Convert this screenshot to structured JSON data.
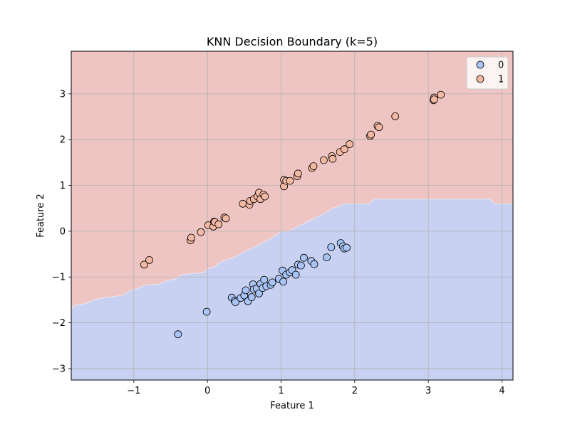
{
  "chart_data": {
    "type": "scatter",
    "title": "KNN Decision Boundary (k=5)",
    "xlabel": "Feature 1",
    "ylabel": "Feature 2",
    "xlim": [
      -1.85,
      4.15
    ],
    "ylim": [
      -3.25,
      3.93
    ],
    "xticks": [
      -1,
      0,
      1,
      2,
      3,
      4
    ],
    "yticks": [
      -3,
      -2,
      -1,
      0,
      1,
      2,
      3
    ],
    "xtick_labels": [
      "−1",
      "0",
      "1",
      "2",
      "3",
      "4"
    ],
    "ytick_labels": [
      "−3",
      "−2",
      "−1",
      "0",
      "1",
      "2",
      "3"
    ],
    "grid": true,
    "legend_position": "upper right",
    "region_colors": {
      "0": "#c8d1f2",
      "1": "#eec5c3"
    },
    "boundary": [
      [
        -1.85,
        -1.7
      ],
      [
        -1.8,
        -1.62
      ],
      [
        -1.65,
        -1.58
      ],
      [
        -1.55,
        -1.5
      ],
      [
        -1.4,
        -1.45
      ],
      [
        -1.15,
        -1.4
      ],
      [
        -1.05,
        -1.3
      ],
      [
        -0.95,
        -1.25
      ],
      [
        -0.85,
        -1.18
      ],
      [
        -0.65,
        -1.15
      ],
      [
        -0.55,
        -1.08
      ],
      [
        -0.45,
        -1.05
      ],
      [
        -0.35,
        -0.95
      ],
      [
        -0.05,
        -0.9
      ],
      [
        0.0,
        -0.82
      ],
      [
        0.1,
        -0.78
      ],
      [
        0.15,
        -0.7
      ],
      [
        0.25,
        -0.63
      ],
      [
        0.35,
        -0.58
      ],
      [
        0.5,
        -0.45
      ],
      [
        0.7,
        -0.3
      ],
      [
        0.9,
        -0.12
      ],
      [
        1.0,
        0.0
      ],
      [
        1.1,
        0.0
      ],
      [
        1.35,
        0.2
      ],
      [
        1.6,
        0.4
      ],
      [
        1.7,
        0.5
      ],
      [
        1.8,
        0.55
      ],
      [
        1.85,
        0.6
      ],
      [
        2.2,
        0.6
      ],
      [
        2.25,
        0.7
      ],
      [
        3.85,
        0.7
      ],
      [
        3.9,
        0.6
      ],
      [
        4.15,
        0.6
      ]
    ],
    "series": [
      {
        "name": "0",
        "color": "#a8c5f6",
        "points": [
          [
            -0.4,
            -2.25
          ],
          [
            -0.01,
            -1.76
          ],
          [
            0.33,
            -1.45
          ],
          [
            0.37,
            -1.52
          ],
          [
            0.38,
            -1.55
          ],
          [
            0.45,
            -1.46
          ],
          [
            0.5,
            -1.4
          ],
          [
            0.52,
            -1.29
          ],
          [
            0.55,
            -1.53
          ],
          [
            0.6,
            -1.44
          ],
          [
            0.62,
            -1.16
          ],
          [
            0.63,
            -1.27
          ],
          [
            0.67,
            -1.25
          ],
          [
            0.7,
            -1.36
          ],
          [
            0.72,
            -1.15
          ],
          [
            0.75,
            -1.24
          ],
          [
            0.77,
            -1.06
          ],
          [
            0.8,
            -1.2
          ],
          [
            0.86,
            -1.17
          ],
          [
            0.88,
            -1.12
          ],
          [
            0.97,
            -1.04
          ],
          [
            1.02,
            -0.86
          ],
          [
            1.03,
            -1.1
          ],
          [
            1.07,
            -0.95
          ],
          [
            1.12,
            -0.9
          ],
          [
            1.15,
            -0.85
          ],
          [
            1.2,
            -0.95
          ],
          [
            1.23,
            -0.73
          ],
          [
            1.27,
            -0.75
          ],
          [
            1.31,
            -0.58
          ],
          [
            1.41,
            -0.65
          ],
          [
            1.45,
            -0.72
          ],
          [
            1.62,
            -0.57
          ],
          [
            1.68,
            -0.35
          ],
          [
            1.81,
            -0.26
          ],
          [
            1.84,
            -0.33
          ],
          [
            1.86,
            -0.38
          ],
          [
            1.89,
            -0.36
          ]
        ]
      },
      {
        "name": "1",
        "color": "#f2b8a2",
        "points": [
          [
            -0.86,
            -0.73
          ],
          [
            -0.79,
            -0.63
          ],
          [
            -0.23,
            -0.2
          ],
          [
            -0.22,
            -0.14
          ],
          [
            -0.09,
            -0.02
          ],
          [
            0.01,
            0.13
          ],
          [
            0.08,
            0.1
          ],
          [
            0.09,
            0.21
          ],
          [
            0.1,
            0.2
          ],
          [
            0.15,
            0.15
          ],
          [
            0.23,
            0.3
          ],
          [
            0.25,
            0.28
          ],
          [
            0.48,
            0.6
          ],
          [
            0.57,
            0.58
          ],
          [
            0.58,
            0.66
          ],
          [
            0.63,
            0.7
          ],
          [
            0.68,
            0.76
          ],
          [
            0.7,
            0.84
          ],
          [
            0.72,
            0.7
          ],
          [
            0.76,
            0.8
          ],
          [
            0.78,
            0.76
          ],
          [
            1.04,
            0.98
          ],
          [
            1.04,
            1.12
          ],
          [
            1.07,
            1.1
          ],
          [
            1.12,
            1.1
          ],
          [
            1.22,
            1.2
          ],
          [
            1.23,
            1.26
          ],
          [
            1.42,
            1.38
          ],
          [
            1.44,
            1.42
          ],
          [
            1.58,
            1.55
          ],
          [
            1.69,
            1.64
          ],
          [
            1.7,
            1.58
          ],
          [
            1.8,
            1.73
          ],
          [
            1.86,
            1.79
          ],
          [
            1.93,
            1.9
          ],
          [
            2.21,
            2.08
          ],
          [
            2.22,
            2.11
          ],
          [
            2.31,
            2.3
          ],
          [
            2.33,
            2.27
          ],
          [
            2.55,
            2.51
          ],
          [
            3.07,
            2.86
          ],
          [
            3.08,
            2.92
          ],
          [
            3.08,
            2.88
          ],
          [
            3.17,
            2.98
          ]
        ]
      }
    ]
  }
}
